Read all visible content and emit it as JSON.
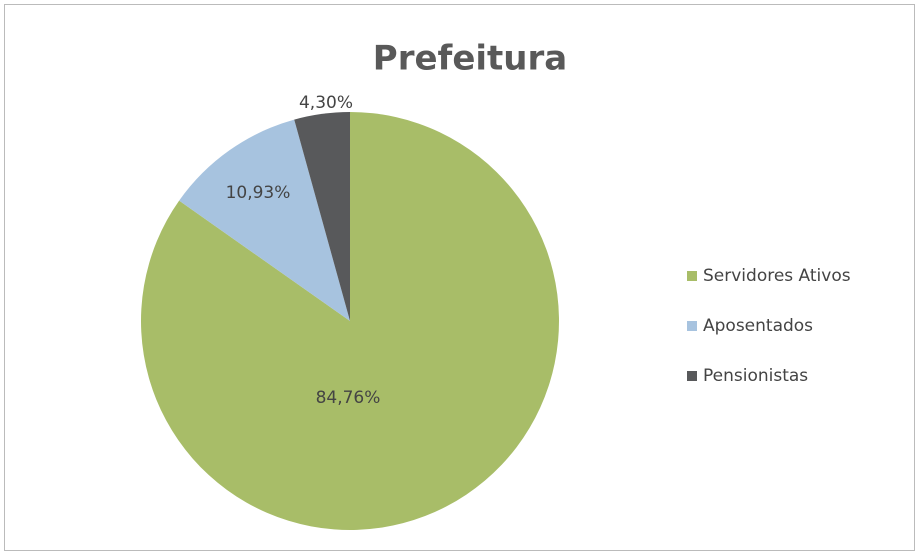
{
  "chart_data": {
    "type": "pie",
    "title": "Prefeitura",
    "categories": [
      "Servidores Ativos",
      "Aposentados",
      "Pensionistas"
    ],
    "values": [
      84.76,
      10.93,
      4.3
    ],
    "value_labels": [
      "84,76%",
      "10,93%",
      "4,30%"
    ],
    "colors": [
      "#a8bd68",
      "#a7c3df",
      "#58595b"
    ],
    "legend": "right"
  }
}
